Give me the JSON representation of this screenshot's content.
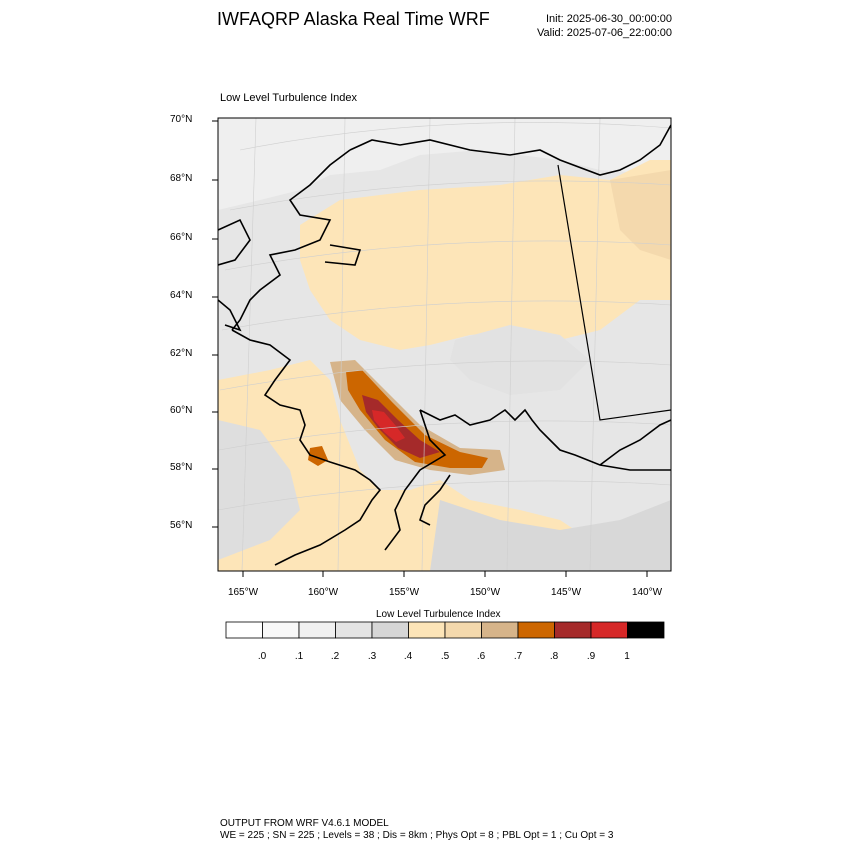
{
  "header": {
    "title": "IWFAQRP Alaska Real Time WRF",
    "init": "Init: 2025-06-30_00:00:00",
    "valid": "Valid: 2025-07-06_22:00:00"
  },
  "plot": {
    "title": "Low Level Turbulence Index",
    "lat_labels": [
      "70°N",
      "68°N",
      "66°N",
      "64°N",
      "62°N",
      "60°N",
      "58°N",
      "56°N"
    ],
    "lon_labels": [
      "165°W",
      "160°W",
      "155°W",
      "150°W",
      "145°W",
      "140°W"
    ]
  },
  "colorbar": {
    "title": "Low Level Turbulence Index",
    "labels": [
      ".0",
      ".1",
      ".2",
      ".3",
      ".4",
      ".5",
      ".6",
      ".7",
      ".8",
      ".9",
      "1"
    ],
    "colors": [
      "#ffffff",
      "#f8f8f8",
      "#f0f0f0",
      "#e4e4e4",
      "#d6d6d6",
      "#fde5b8",
      "#f4d9ad",
      "#d6b48a",
      "#cc6600",
      "#a52a2a",
      "#d62828",
      "#000000"
    ]
  },
  "footer": {
    "line1": "OUTPUT FROM WRF V4.6.1 MODEL",
    "line2": "WE = 225 ; SN = 225 ; Levels = 38 ; Dis = 8km ; Phys Opt = 8 ; PBL Opt = 1 ; Cu Opt = 3"
  }
}
